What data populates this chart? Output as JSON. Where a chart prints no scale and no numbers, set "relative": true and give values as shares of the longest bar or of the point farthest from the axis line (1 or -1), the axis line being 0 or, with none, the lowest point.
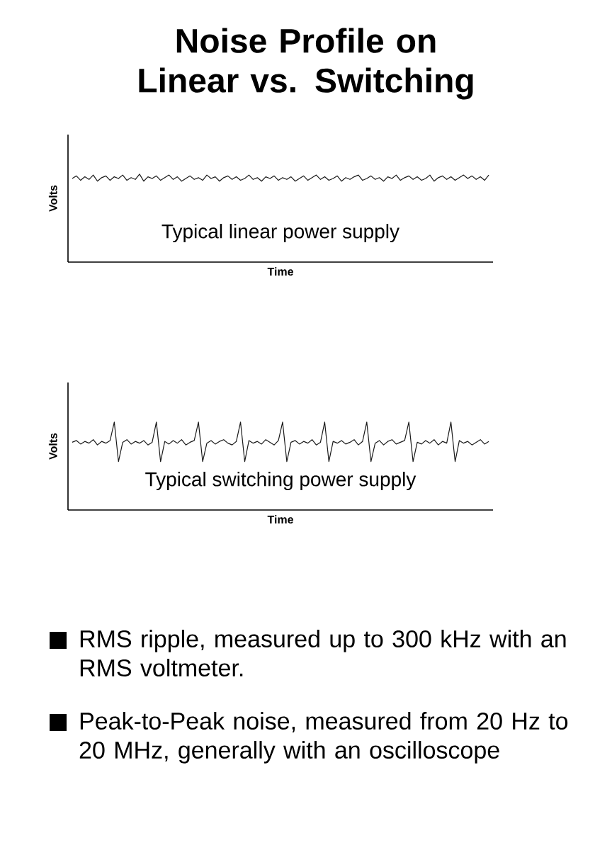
{
  "chart_data": [
    {
      "type": "line",
      "title": "Noise Profile on Linear vs. Switching",
      "xlabel": "Time",
      "ylabel": "Volts",
      "relative": true,
      "annotations": [
        "Typical linear power supply"
      ],
      "categories": [
        null,
        null,
        null,
        null,
        null,
        null,
        null,
        null,
        null,
        null,
        null,
        null,
        null,
        null,
        null,
        null,
        null,
        null,
        null,
        null,
        null,
        null,
        null,
        null,
        null,
        null,
        null,
        null,
        null,
        null,
        null,
        null,
        null,
        null,
        null,
        null,
        null,
        null,
        null,
        null,
        null,
        null,
        null,
        null,
        null,
        null,
        null,
        null,
        null,
        null,
        null,
        null,
        null,
        null,
        null,
        null,
        null,
        null,
        null,
        null,
        null,
        null,
        null,
        null,
        null,
        null,
        null,
        null,
        null,
        null,
        null,
        null,
        null,
        null,
        null,
        null,
        null,
        null,
        null,
        null,
        null,
        null,
        null,
        null,
        null,
        null,
        null,
        null,
        null,
        null,
        null,
        null,
        null,
        null,
        null,
        null,
        null,
        null,
        null,
        null
      ],
      "series": [
        {
          "color": "#1a1a1a",
          "values": [
            0.95,
            0.98,
            0.93,
            0.97,
            0.94,
            0.99,
            0.92,
            0.96,
            0.98,
            0.93,
            0.97,
            0.95,
            0.99,
            0.93,
            0.96,
            0.94,
            1.0,
            0.92,
            0.97,
            0.95,
            0.98,
            0.93,
            0.96,
            0.99,
            0.94,
            0.97,
            0.92,
            0.95,
            0.98,
            0.94,
            0.96,
            0.93,
            0.99,
            0.95,
            0.97,
            0.92,
            0.96,
            0.98,
            0.94,
            0.97,
            0.93,
            0.95,
            0.99,
            0.94,
            0.96,
            0.92,
            0.97,
            0.95,
            0.98,
            0.93,
            0.96,
            0.94,
            0.97,
            0.92,
            0.95,
            0.98,
            0.93,
            0.96,
            0.99,
            0.94,
            0.97,
            0.93,
            0.95,
            0.98,
            0.92,
            0.96,
            0.94,
            0.97,
            0.99,
            0.93,
            0.95,
            0.98,
            0.94,
            0.96,
            0.92,
            0.97,
            0.95,
            0.99,
            0.93,
            0.96,
            0.98,
            0.94,
            0.97,
            0.93,
            0.95,
            0.99,
            0.92,
            0.96,
            0.98,
            0.94,
            0.97,
            0.93,
            0.96,
            0.99,
            0.95,
            0.98,
            0.94,
            0.97,
            0.93,
            0.99
          ]
        }
      ]
    },
    {
      "type": "line",
      "xlabel": "Time",
      "ylabel": "Volts",
      "relative": true,
      "annotations": [
        "Typical switching power supply",
        "RMS ripple, measured up to 300 kHz with an RMS voltmeter.",
        "Peak-to-Peak noise, measured from 20 Hz to 20 MHz, generally with an oscilloscope"
      ],
      "categories": [
        null,
        null,
        null,
        null,
        null,
        null,
        null,
        null,
        null,
        null,
        null,
        null,
        null,
        null,
        null,
        null,
        null,
        null,
        null,
        null,
        null,
        null,
        null,
        null,
        null,
        null,
        null,
        null,
        null,
        null,
        null,
        null,
        null,
        null,
        null,
        null,
        null,
        null,
        null,
        null,
        null,
        null,
        null,
        null,
        null,
        null,
        null,
        null,
        null,
        null,
        null,
        null,
        null,
        null,
        null,
        null,
        null,
        null,
        null,
        null,
        null,
        null,
        null,
        null,
        null,
        null,
        null,
        null,
        null,
        null,
        null,
        null,
        null,
        null,
        null,
        null,
        null,
        null,
        null,
        null,
        null,
        null,
        null,
        null,
        null,
        null,
        null,
        null,
        null,
        null,
        null,
        null,
        null,
        null,
        null,
        null,
        null,
        null,
        null,
        null
      ],
      "series": [
        {
          "color": "#1a1a1a",
          "values": [
            0.77,
            0.79,
            0.75,
            0.78,
            0.76,
            0.8,
            0.74,
            0.78,
            0.76,
            0.79,
            1.0,
            0.55,
            0.77,
            0.8,
            0.75,
            0.78,
            0.76,
            0.79,
            0.74,
            0.77,
            1.0,
            0.55,
            0.78,
            0.75,
            0.79,
            0.76,
            0.8,
            0.74,
            0.77,
            0.79,
            1.0,
            0.55,
            0.76,
            0.79,
            0.75,
            0.78,
            0.8,
            0.76,
            0.74,
            0.78,
            1.0,
            0.55,
            0.79,
            0.76,
            0.78,
            0.75,
            0.8,
            0.77,
            0.74,
            0.79,
            1.0,
            0.55,
            0.77,
            0.79,
            0.75,
            0.78,
            0.76,
            0.8,
            0.74,
            0.77,
            1.0,
            0.55,
            0.78,
            0.76,
            0.79,
            0.75,
            0.77,
            0.8,
            0.74,
            0.78,
            1.0,
            0.55,
            0.76,
            0.79,
            0.74,
            0.78,
            0.8,
            0.75,
            0.77,
            0.79,
            1.0,
            0.55,
            0.77,
            0.75,
            0.79,
            0.76,
            0.8,
            0.74,
            0.78,
            0.76,
            1.0,
            0.55,
            0.79,
            0.76,
            0.78,
            0.74,
            0.77,
            0.8,
            0.75,
            0.78
          ]
        }
      ]
    }
  ]
}
